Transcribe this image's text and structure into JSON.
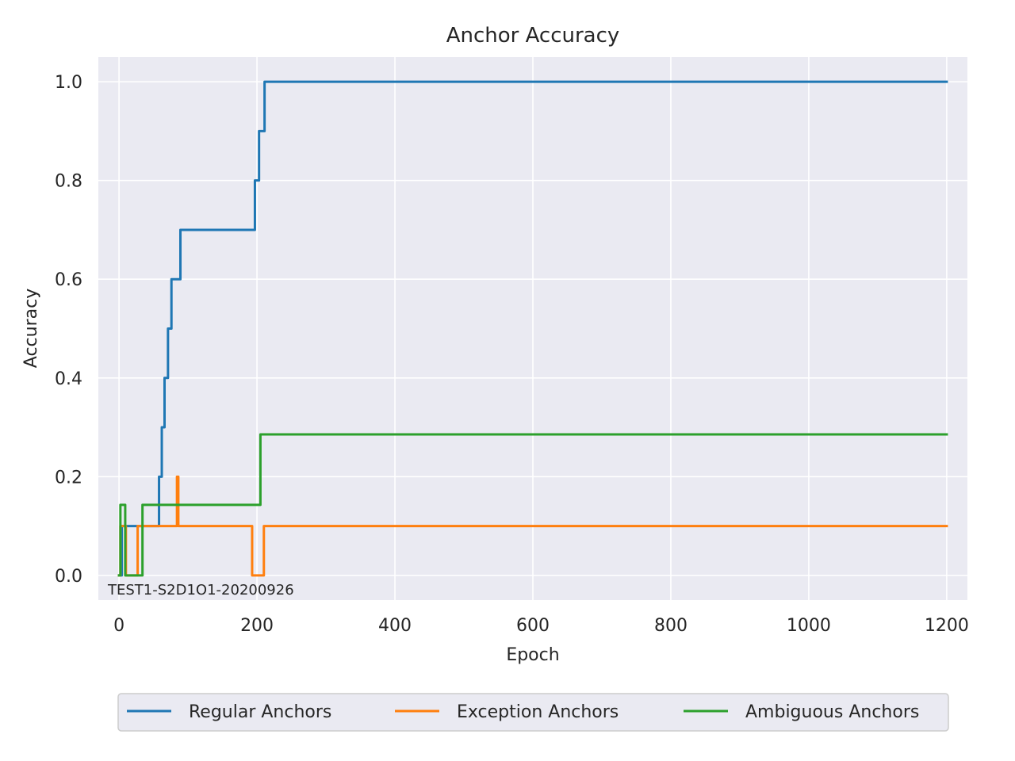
{
  "chart_data": {
    "type": "line",
    "title": "Anchor Accuracy",
    "xlabel": "Epoch",
    "ylabel": "Accuracy",
    "xlim": [
      -30,
      1230
    ],
    "ylim": [
      -0.05,
      1.05
    ],
    "xticks": [
      0,
      200,
      400,
      600,
      800,
      1000,
      1200
    ],
    "yticks": [
      0.0,
      0.2,
      0.4,
      0.6,
      0.8,
      1.0
    ],
    "xtick_labels": [
      "0",
      "200",
      "400",
      "600",
      "800",
      "1000",
      "1200"
    ],
    "ytick_labels": [
      "0.0",
      "0.2",
      "0.4",
      "0.6",
      "0.8",
      "1.0"
    ],
    "grid": true,
    "annotation": "TEST1-S2D1O1-20200926",
    "legend": {
      "placement": "bottom-center"
    },
    "series": [
      {
        "name": "Regular Anchors",
        "color": "#1f77b4",
        "x": [
          0,
          4,
          4,
          10,
          10,
          55,
          55,
          58,
          58,
          62,
          62,
          63,
          63,
          66,
          66,
          68,
          68,
          71,
          71,
          76,
          76,
          78,
          78,
          89,
          89,
          91,
          91,
          197,
          197,
          199,
          199,
          203,
          203,
          211,
          211,
          214,
          214,
          1200
        ],
        "y": [
          0,
          0,
          0.1,
          0.1,
          0.1,
          0.1,
          0.1,
          0.1,
          0.2,
          0.2,
          0.3,
          0.3,
          0.3,
          0.3,
          0.4,
          0.4,
          0.4,
          0.4,
          0.5,
          0.5,
          0.6,
          0.6,
          0.6,
          0.6,
          0.7,
          0.7,
          0.7,
          0.7,
          0.8,
          0.8,
          0.8,
          0.8,
          0.9,
          0.9,
          1.0,
          1.0,
          1.0,
          1.0
        ]
      },
      {
        "name": "Exception Anchors",
        "color": "#ff7f0e",
        "x": [
          0,
          2,
          2,
          10,
          10,
          27,
          27,
          29,
          29,
          84,
          84,
          86,
          86,
          88,
          88,
          193,
          193,
          210,
          210,
          1200
        ],
        "y": [
          0,
          0,
          0.1,
          0.1,
          0,
          0,
          0.1,
          0.1,
          0.1,
          0.1,
          0.2,
          0.2,
          0.1,
          0.1,
          0.1,
          0.1,
          0,
          0,
          0.1,
          0.1
        ]
      },
      {
        "name": "Ambiguous Anchors",
        "color": "#2ca02c",
        "x": [
          0,
          2,
          2,
          9,
          9,
          34,
          34,
          205,
          205,
          1200
        ],
        "y": [
          0,
          0,
          0.142857,
          0.142857,
          0,
          0,
          0.142857,
          0.142857,
          0.285714,
          0.285714
        ]
      }
    ]
  }
}
